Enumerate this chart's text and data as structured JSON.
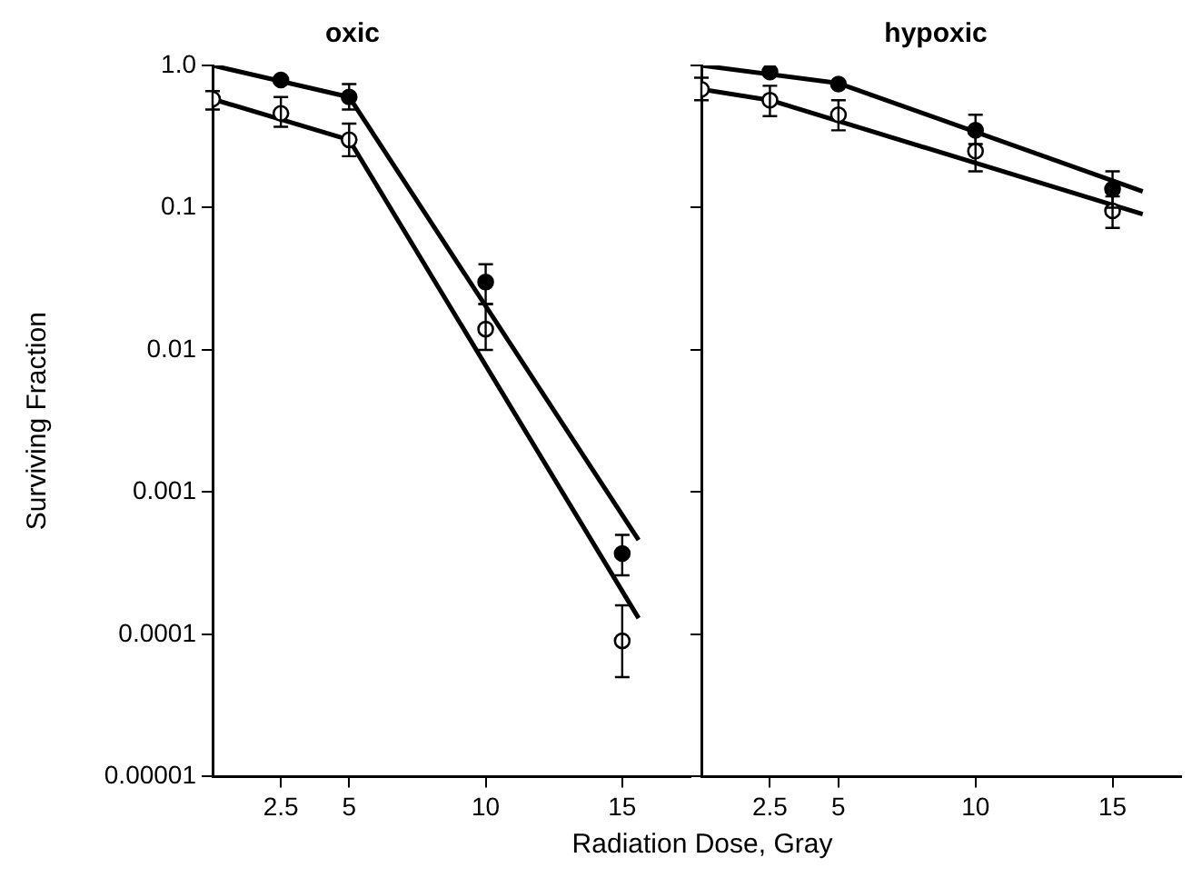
{
  "chart_data": [
    {
      "type": "scatter",
      "title": "oxic",
      "xlabel": "Radiation Dose, Gray",
      "ylabel": "Surviving Fraction",
      "log": true,
      "marker": "circle",
      "xlim": [
        0,
        17.5
      ],
      "xticks": [
        2.5,
        5,
        10,
        15
      ],
      "ylim": [
        1e-05,
        1
      ],
      "yticks": [
        {
          "value": 1,
          "label": "1.0"
        },
        0.1,
        0.01,
        0.001,
        0.0001,
        {
          "value": 1e-05,
          "label": "0.00001"
        }
      ],
      "series": [
        {
          "type": "scatter",
          "color": "#000000",
          "x": [
            2.5,
            5,
            10,
            15
          ],
          "values": [
            0.79,
            0.6,
            0.03,
            0.00037
          ],
          "errors": [
            null,
            [
              0.49,
              0.74
            ],
            [
              0.021,
              0.04
            ],
            [
              0.00026,
              0.0005
            ]
          ]
        },
        {
          "type": "scatter",
          "color": "#ffffff",
          "x": [
            0,
            2.5,
            5,
            10,
            15
          ],
          "values": [
            0.58,
            0.46,
            0.3,
            0.014,
            9e-05
          ],
          "errors": [
            [
              0.49,
              0.66
            ],
            [
              0.37,
              0.6
            ],
            [
              0.23,
              0.39
            ],
            [
              0.01,
              0.021
            ],
            [
              5e-05,
              0.00016
            ]
          ]
        },
        {
          "type": "line",
          "marker": "none",
          "color": "#000000",
          "x": [
            0,
            5,
            15.6
          ],
          "values": [
            1.0,
            0.6,
            0.00046
          ]
        },
        {
          "type": "line",
          "marker": "none",
          "color": "#000000",
          "x": [
            0,
            5,
            15.6
          ],
          "values": [
            0.58,
            0.3,
            0.00013
          ]
        }
      ]
    },
    {
      "type": "scatter",
      "title": "hypoxic",
      "log": true,
      "marker": "circle",
      "tick_labels": "x",
      "xlim": [
        0,
        17.5
      ],
      "xticks": [
        2.5,
        5,
        10,
        15
      ],
      "ylim": [
        1e-05,
        1
      ],
      "yticks": [
        1,
        0.1,
        0.01,
        0.001,
        0.0001,
        1e-05
      ],
      "series": [
        {
          "type": "scatter",
          "color": "#000000",
          "x": [
            2.5,
            5,
            10,
            15
          ],
          "values": [
            0.9,
            0.74,
            0.35,
            0.135
          ],
          "errors": [
            null,
            null,
            [
              0.28,
              0.45
            ],
            [
              0.1,
              0.18
            ]
          ]
        },
        {
          "type": "scatter",
          "color": "#ffffff",
          "x": [
            0,
            2.5,
            5,
            10,
            15
          ],
          "values": [
            0.68,
            0.57,
            0.45,
            0.25,
            0.095
          ],
          "errors": [
            [
              0.57,
              0.82
            ],
            [
              0.44,
              0.72
            ],
            [
              0.35,
              0.57
            ],
            [
              0.18,
              0.33
            ],
            [
              0.072,
              0.12
            ]
          ]
        },
        {
          "type": "line",
          "marker": "none",
          "color": "#000000",
          "x": [
            0,
            5,
            16.1
          ],
          "values": [
            1.0,
            0.75,
            0.13
          ]
        },
        {
          "type": "line",
          "marker": "none",
          "color": "#000000",
          "x": [
            0,
            2.5,
            16.1
          ],
          "values": [
            0.68,
            0.57,
            0.09
          ]
        }
      ]
    }
  ]
}
